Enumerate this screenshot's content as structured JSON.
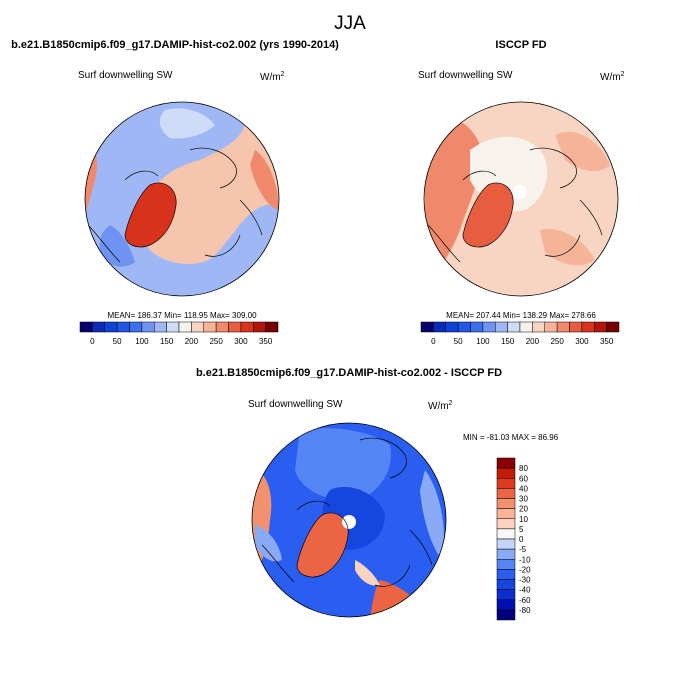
{
  "page_title": "JJA",
  "chart_data": [
    {
      "type": "heatmap",
      "projection": "north-polar-stereographic",
      "title": "b.e21.B1850cmip6.f09_g17.DAMIP-hist-co2.002 (yrs 1990-2014)",
      "variable": "Surf downwelling SW",
      "units": "W/m",
      "units_exp": "2",
      "stats_text": "MEAN= 186.37  Min= 118.95  Max= 309.00",
      "stats": {
        "mean": 186.37,
        "min": 118.95,
        "max": 309.0
      },
      "colorbar": {
        "orientation": "horizontal",
        "levels": [
          0,
          25,
          50,
          75,
          100,
          125,
          150,
          175,
          200,
          225,
          250,
          275,
          300,
          325,
          350
        ],
        "tick_labels": [
          "0",
          "50",
          "100",
          "150",
          "200",
          "250",
          "300",
          "350"
        ],
        "colors": [
          "#08006b",
          "#0a2bb8",
          "#0c43d6",
          "#2156e6",
          "#3f6ff0",
          "#6f93f2",
          "#9fb8f5",
          "#cedcf8",
          "#f8f2ec",
          "#f8d5c2",
          "#f5b397",
          "#f0896b",
          "#e85c40",
          "#d9321c",
          "#b31608",
          "#790000"
        ]
      }
    },
    {
      "type": "heatmap",
      "projection": "north-polar-stereographic",
      "title": "ISCCP FD",
      "variable": "Surf downwelling SW",
      "units": "W/m",
      "units_exp": "2",
      "stats_text": "MEAN= 207.44  Min= 138.29  Max= 278.66",
      "stats": {
        "mean": 207.44,
        "min": 138.29,
        "max": 278.66
      },
      "colorbar": {
        "orientation": "horizontal",
        "levels": [
          0,
          25,
          50,
          75,
          100,
          125,
          150,
          175,
          200,
          225,
          250,
          275,
          300,
          325,
          350
        ],
        "tick_labels": [
          "0",
          "50",
          "100",
          "150",
          "200",
          "250",
          "300",
          "350"
        ],
        "colors": [
          "#08006b",
          "#0a2bb8",
          "#0c43d6",
          "#2156e6",
          "#3f6ff0",
          "#6f93f2",
          "#9fb8f5",
          "#cedcf8",
          "#f8f2ec",
          "#f8d5c2",
          "#f5b397",
          "#f0896b",
          "#e85c40",
          "#d9321c",
          "#b31608",
          "#790000"
        ]
      }
    },
    {
      "type": "heatmap",
      "projection": "north-polar-stereographic",
      "title": "b.e21.B1850cmip6.f09_g17.DAMIP-hist-co2.002 - ISCCP FD",
      "variable": "Surf downwelling SW",
      "units": "W/m",
      "units_exp": "2",
      "stats_text": "MIN = -81.03 MAX =  86.96",
      "stats": {
        "min": -81.03,
        "max": 86.96
      },
      "colorbar": {
        "orientation": "vertical",
        "levels": [
          -80,
          -60,
          -40,
          -30,
          -20,
          -10,
          -5,
          0,
          5,
          10,
          20,
          30,
          40,
          60,
          80
        ],
        "tick_labels": [
          "80",
          "60",
          "40",
          "30",
          "20",
          "10",
          "5",
          "0",
          "-5",
          "-10",
          "-20",
          "-30",
          "-40",
          "-60",
          "-80"
        ],
        "colors": [
          "#00007f",
          "#0010b0",
          "#0a2ed0",
          "#1646e0",
          "#2a5ef0",
          "#5585f5",
          "#8aaaf5",
          "#c3d4f8",
          "#f7f7f4",
          "#fbd2bd",
          "#f8b497",
          "#f3906d",
          "#eb6544",
          "#dd3a1f",
          "#c01c08",
          "#8a0000"
        ]
      }
    }
  ]
}
